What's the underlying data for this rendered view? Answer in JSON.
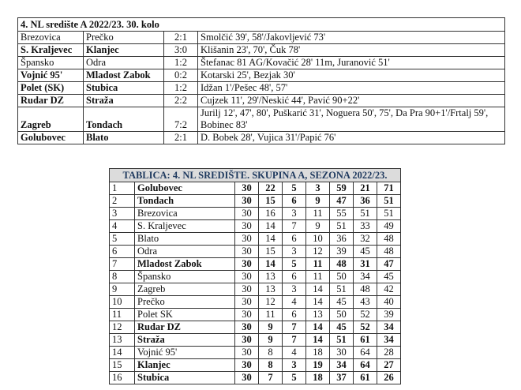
{
  "results": {
    "title": "4. NL središte A 2022/23. 30. kolo",
    "rows": [
      {
        "home": "Brezovica",
        "away": "Prečko",
        "score": "2:1",
        "scorers": "Smolčić 39', 58'/Jakovljević 73'",
        "bold": false
      },
      {
        "home": "S. Kraljevec",
        "away": "Klanjec",
        "score": "3:0",
        "scorers": "Klišanin 23', 70', Čuk 78'",
        "bold": true
      },
      {
        "home": "Špansko",
        "away": "Odra",
        "score": "1:2",
        "scorers": "Štefanac 81 AG/Kovačić 28' 11m, Juranović 51'",
        "bold": false
      },
      {
        "home": "Vojnić 95'",
        "away": "Mladost Zabok",
        "score": "0:2",
        "scorers": "Kotarski 25', Bezjak 30'",
        "bold": true
      },
      {
        "home": "Polet (SK)",
        "away": "Stubica",
        "score": "1:2",
        "scorers": "Idžan 1'/Pešec 48', 57'",
        "bold": true
      },
      {
        "home": "Rudar DZ",
        "away": "Straža",
        "score": "2:2",
        "scorers": "Cujzek 11', 29'/Neskić 44', Pavić 90+22'",
        "bold": true
      },
      {
        "home": "Zagreb",
        "away": "Tondach",
        "score": "7:2",
        "scorers": "Jurilj 12', 47', 80', Puškarić 31', Noguera 50', 75', Da Pra 90+1'/Frtalj 59', Bobinec 83'",
        "bold": true
      },
      {
        "home": "Golubovec",
        "away": "Blato",
        "score": "2:1",
        "scorers": "D. Bobek 28', Vujica 31'/Papić 76'",
        "bold": true
      }
    ]
  },
  "standings": {
    "title": "TABLICA: 4. NL SREDIŠTE. SKUPINA A, SEZONA 2022/23.",
    "rows": [
      {
        "pos": "1",
        "team": "Golubovec",
        "v": [
          "30",
          "22",
          "5",
          "3",
          "59",
          "21",
          "71"
        ],
        "bold": true
      },
      {
        "pos": "2",
        "team": "Tondach",
        "v": [
          "30",
          "15",
          "6",
          "9",
          "47",
          "36",
          "51"
        ],
        "bold": true
      },
      {
        "pos": "3",
        "team": "Brezovica",
        "v": [
          "30",
          "16",
          "3",
          "11",
          "55",
          "51",
          "51"
        ],
        "bold": false
      },
      {
        "pos": "4",
        "team": "S. Kraljevec",
        "v": [
          "30",
          "14",
          "7",
          "9",
          "51",
          "33",
          "49"
        ],
        "bold": false
      },
      {
        "pos": "5",
        "team": "Blato",
        "v": [
          "30",
          "14",
          "6",
          "10",
          "36",
          "32",
          "48"
        ],
        "bold": false
      },
      {
        "pos": "6",
        "team": "Odra",
        "v": [
          "30",
          "15",
          "3",
          "12",
          "39",
          "45",
          "48"
        ],
        "bold": false
      },
      {
        "pos": "7",
        "team": "Mladost Zabok",
        "v": [
          "30",
          "14",
          "5",
          "11",
          "48",
          "31",
          "47"
        ],
        "bold": true
      },
      {
        "pos": "8",
        "team": "Špansko",
        "v": [
          "30",
          "13",
          "6",
          "11",
          "50",
          "34",
          "45"
        ],
        "bold": false
      },
      {
        "pos": "9",
        "team": "Zagreb",
        "v": [
          "30",
          "13",
          "3",
          "14",
          "51",
          "48",
          "42"
        ],
        "bold": false
      },
      {
        "pos": "10",
        "team": "Prečko",
        "v": [
          "30",
          "12",
          "4",
          "14",
          "45",
          "43",
          "40"
        ],
        "bold": false
      },
      {
        "pos": "11",
        "team": "Polet SK",
        "v": [
          "30",
          "11",
          "6",
          "13",
          "50",
          "52",
          "39"
        ],
        "bold": false
      },
      {
        "pos": "12",
        "team": "Rudar DZ",
        "v": [
          "30",
          "9",
          "7",
          "14",
          "45",
          "52",
          "34"
        ],
        "bold": true
      },
      {
        "pos": "13",
        "team": "Straža",
        "v": [
          "30",
          "9",
          "7",
          "14",
          "51",
          "61",
          "34"
        ],
        "bold": true
      },
      {
        "pos": "14",
        "team": "Vojnić 95'",
        "v": [
          "30",
          "8",
          "4",
          "18",
          "30",
          "64",
          "28"
        ],
        "bold": false
      },
      {
        "pos": "15",
        "team": "Klanjec",
        "v": [
          "30",
          "8",
          "3",
          "19",
          "34",
          "64",
          "27"
        ],
        "bold": true
      },
      {
        "pos": "16",
        "team": "Stubica",
        "v": [
          "30",
          "7",
          "5",
          "18",
          "37",
          "61",
          "26"
        ],
        "bold": true
      }
    ]
  }
}
